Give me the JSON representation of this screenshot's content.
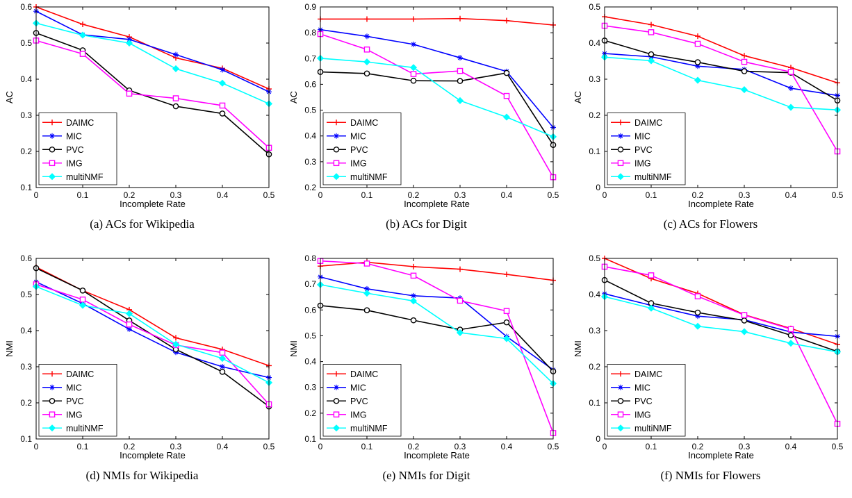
{
  "figure": {
    "legend_labels": [
      "DAIMC",
      "MIC",
      "PVC",
      "IMG",
      "multiNMF"
    ],
    "series_colors": {
      "DAIMC": "#ff0000",
      "MIC": "#0000ff",
      "PVC": "#000000",
      "IMG": "#ff00ff",
      "multiNMF": "#00ffff"
    },
    "series_markers": {
      "DAIMC": "plus",
      "MIC": "star",
      "PVC": "circle",
      "IMG": "square",
      "multiNMF": "diamond"
    }
  },
  "chart_data": [
    {
      "type": "line",
      "caption": "(a)  ACs for Wikipedia",
      "xlabel": "Incomplete Rate",
      "ylabel": "AC",
      "x": [
        0,
        0.1,
        0.2,
        0.3,
        0.4,
        0.5
      ],
      "xticks": [
        "0",
        "0.1",
        "0.2",
        "0.3",
        "0.4",
        "0.5"
      ],
      "ylim": [
        0.1,
        0.6
      ],
      "yticks": [
        "0.1",
        "0.2",
        "0.3",
        "0.4",
        "0.5",
        "0.6"
      ],
      "legend_position": "bottom-left",
      "series": [
        {
          "name": "DAIMC",
          "values": [
            0.6,
            0.552,
            0.517,
            0.459,
            0.43,
            0.373
          ]
        },
        {
          "name": "MIC",
          "values": [
            0.588,
            0.523,
            0.51,
            0.468,
            0.426,
            0.365
          ]
        },
        {
          "name": "PVC",
          "values": [
            0.528,
            0.48,
            0.369,
            0.325,
            0.305,
            0.192
          ]
        },
        {
          "name": "IMG",
          "values": [
            0.507,
            0.47,
            0.36,
            0.347,
            0.327,
            0.21
          ]
        },
        {
          "name": "multiNMF",
          "values": [
            0.555,
            0.522,
            0.5,
            0.429,
            0.389,
            0.332
          ]
        }
      ]
    },
    {
      "type": "line",
      "caption": "(b)  ACs for Digit",
      "xlabel": "Incomplete Rate",
      "ylabel": "AC",
      "x": [
        0,
        0.1,
        0.2,
        0.3,
        0.4,
        0.5
      ],
      "xticks": [
        "0",
        "0.1",
        "0.2",
        "0.3",
        "0.4",
        "0.5"
      ],
      "ylim": [
        0.2,
        0.9
      ],
      "yticks": [
        "0.2",
        "0.3",
        "0.4",
        "0.5",
        "0.6",
        "0.7",
        "0.8",
        "0.9"
      ],
      "legend_position": "bottom-left",
      "series": [
        {
          "name": "DAIMC",
          "values": [
            0.853,
            0.853,
            0.853,
            0.855,
            0.847,
            0.83
          ]
        },
        {
          "name": "MIC",
          "values": [
            0.812,
            0.786,
            0.755,
            0.703,
            0.65,
            0.433
          ]
        },
        {
          "name": "PVC",
          "values": [
            0.648,
            0.642,
            0.614,
            0.613,
            0.644,
            0.365
          ]
        },
        {
          "name": "IMG",
          "values": [
            0.795,
            0.735,
            0.64,
            0.652,
            0.555,
            0.24
          ]
        },
        {
          "name": "multiNMF",
          "values": [
            0.701,
            0.687,
            0.665,
            0.537,
            0.473,
            0.397
          ]
        }
      ]
    },
    {
      "type": "line",
      "caption": "(c)  ACs for Flowers",
      "xlabel": "Incomplete Rate",
      "ylabel": "AC",
      "x": [
        0,
        0.1,
        0.2,
        0.3,
        0.4,
        0.5
      ],
      "xticks": [
        "0",
        "0.1",
        "0.2",
        "0.3",
        "0.4",
        "0.5"
      ],
      "ylim": [
        0,
        0.5
      ],
      "yticks": [
        "0",
        "0.1",
        "0.2",
        "0.3",
        "0.4",
        "0.5"
      ],
      "legend_position": "bottom-left",
      "series": [
        {
          "name": "DAIMC",
          "values": [
            0.473,
            0.451,
            0.419,
            0.365,
            0.332,
            0.29
          ]
        },
        {
          "name": "MIC",
          "values": [
            0.371,
            0.362,
            0.336,
            0.327,
            0.275,
            0.255
          ]
        },
        {
          "name": "PVC",
          "values": [
            0.407,
            0.369,
            0.347,
            0.322,
            0.318,
            0.241
          ]
        },
        {
          "name": "IMG",
          "values": [
            0.448,
            0.43,
            0.398,
            0.348,
            0.32,
            0.1
          ]
        },
        {
          "name": "multiNMF",
          "values": [
            0.361,
            0.351,
            0.297,
            0.271,
            0.222,
            0.215
          ]
        }
      ]
    },
    {
      "type": "line",
      "caption": "(d)  NMIs for Wikipedia",
      "xlabel": "Incomplete Rate",
      "ylabel": "NMI",
      "x": [
        0,
        0.1,
        0.2,
        0.3,
        0.4,
        0.5
      ],
      "xticks": [
        "0",
        "0.1",
        "0.2",
        "0.3",
        "0.4",
        "0.5"
      ],
      "ylim": [
        0.1,
        0.6
      ],
      "yticks": [
        "0.1",
        "0.2",
        "0.3",
        "0.4",
        "0.5",
        "0.6"
      ],
      "legend_position": "bottom-left",
      "series": [
        {
          "name": "DAIMC",
          "values": [
            0.576,
            0.511,
            0.458,
            0.38,
            0.348,
            0.303
          ]
        },
        {
          "name": "MIC",
          "values": [
            0.535,
            0.475,
            0.404,
            0.34,
            0.3,
            0.27
          ]
        },
        {
          "name": "PVC",
          "values": [
            0.573,
            0.511,
            0.428,
            0.348,
            0.286,
            0.19
          ]
        },
        {
          "name": "IMG",
          "values": [
            0.528,
            0.486,
            0.417,
            0.36,
            0.339,
            0.196
          ]
        },
        {
          "name": "multiNMF",
          "values": [
            0.522,
            0.47,
            0.447,
            0.362,
            0.323,
            0.256
          ]
        }
      ]
    },
    {
      "type": "line",
      "caption": "(e)  NMIs for Digit",
      "xlabel": "Incomplete Rate",
      "ylabel": "NMI",
      "x": [
        0,
        0.1,
        0.2,
        0.3,
        0.4,
        0.5
      ],
      "xticks": [
        "0",
        "0.1",
        "0.2",
        "0.3",
        "0.4",
        "0.5"
      ],
      "ylim": [
        0.1,
        0.8
      ],
      "yticks": [
        "0.1",
        "0.2",
        "0.3",
        "0.4",
        "0.5",
        "0.6",
        "0.7",
        "0.8"
      ],
      "legend_position": "bottom-left",
      "series": [
        {
          "name": "DAIMC",
          "values": [
            0.77,
            0.785,
            0.768,
            0.758,
            0.738,
            0.715
          ]
        },
        {
          "name": "MIC",
          "values": [
            0.728,
            0.682,
            0.655,
            0.646,
            0.497,
            0.368
          ]
        },
        {
          "name": "PVC",
          "values": [
            0.617,
            0.599,
            0.56,
            0.524,
            0.552,
            0.362
          ]
        },
        {
          "name": "IMG",
          "values": [
            0.79,
            0.78,
            0.733,
            0.636,
            0.596,
            0.123
          ]
        },
        {
          "name": "multiNMF",
          "values": [
            0.698,
            0.665,
            0.635,
            0.512,
            0.489,
            0.315
          ]
        }
      ]
    },
    {
      "type": "line",
      "caption": "(f)  NMIs for Flowers",
      "xlabel": "Incomplete Rate",
      "ylabel": "NMI",
      "x": [
        0,
        0.1,
        0.2,
        0.3,
        0.4,
        0.5
      ],
      "xticks": [
        "0",
        "0.1",
        "0.2",
        "0.3",
        "0.4",
        "0.5"
      ],
      "ylim": [
        0,
        0.5
      ],
      "yticks": [
        "0",
        "0.1",
        "0.2",
        "0.3",
        "0.4",
        "0.5"
      ],
      "legend_position": "bottom-left",
      "series": [
        {
          "name": "DAIMC",
          "values": [
            0.5,
            0.444,
            0.403,
            0.344,
            0.306,
            0.262
          ]
        },
        {
          "name": "MIC",
          "values": [
            0.402,
            0.37,
            0.34,
            0.33,
            0.296,
            0.284
          ]
        },
        {
          "name": "PVC",
          "values": [
            0.44,
            0.376,
            0.35,
            0.328,
            0.287,
            0.242
          ]
        },
        {
          "name": "IMG",
          "values": [
            0.477,
            0.453,
            0.395,
            0.343,
            0.304,
            0.042
          ]
        },
        {
          "name": "multiNMF",
          "values": [
            0.394,
            0.362,
            0.312,
            0.297,
            0.265,
            0.241
          ]
        }
      ]
    }
  ]
}
